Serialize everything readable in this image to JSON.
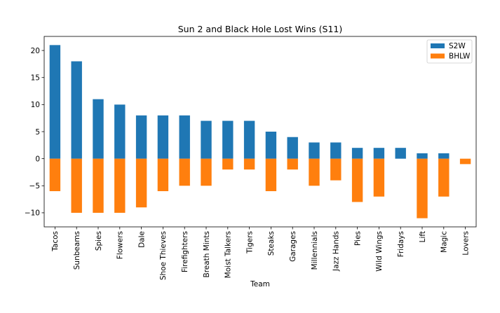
{
  "chart_data": {
    "type": "bar",
    "title": "Sun 2 and Black Hole Lost Wins (S11)",
    "xlabel": "Team",
    "ylabel": "",
    "ylim": [
      -12.6,
      22.6
    ],
    "yticks": [
      -10,
      -5,
      0,
      5,
      10,
      15,
      20
    ],
    "grid": false,
    "stacked": true,
    "legend_position": "top-right",
    "categories": [
      "Tacos",
      "Sunbeams",
      "Spies",
      "Flowers",
      "Dale",
      "Shoe Thieves",
      "Firefighters",
      "Breath Mints",
      "Moist Talkers",
      "Tigers",
      "Steaks",
      "Garages",
      "Millennials",
      "Jazz Hands",
      "Pies",
      "Wild Wings",
      "Fridays",
      "Lift",
      "Magic",
      "Lovers"
    ],
    "series": [
      {
        "name": "S2W",
        "color": "#1f77b4",
        "values": [
          21,
          18,
          11,
          10,
          8,
          8,
          8,
          7,
          7,
          7,
          5,
          4,
          3,
          3,
          2,
          2,
          2,
          1,
          1,
          0
        ]
      },
      {
        "name": "BHLW",
        "color": "#ff7f0e",
        "values": [
          -6,
          -10,
          -10,
          -10,
          -9,
          -6,
          -5,
          -5,
          -2,
          -2,
          -6,
          -2,
          -5,
          -4,
          -8,
          -7,
          0,
          -11,
          -7,
          -1
        ]
      }
    ]
  }
}
